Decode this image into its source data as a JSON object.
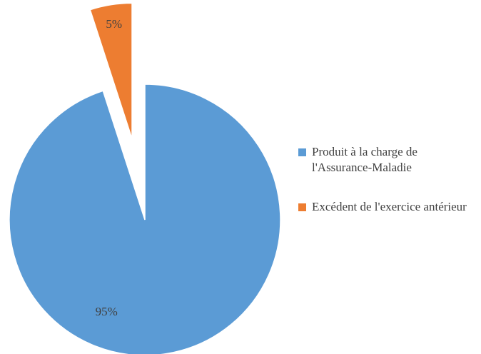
{
  "chart_data": {
    "type": "pie",
    "categories": [
      "Produit à la charge de l'Assurance-Maladie",
      "Excédent de l'exercice antérieur"
    ],
    "values": [
      95,
      5
    ],
    "value_labels": [
      "95%",
      "5%"
    ],
    "colors": [
      "#5b9bd5",
      "#ed7d31"
    ],
    "exploded": [
      false,
      true
    ],
    "legend": "right"
  }
}
